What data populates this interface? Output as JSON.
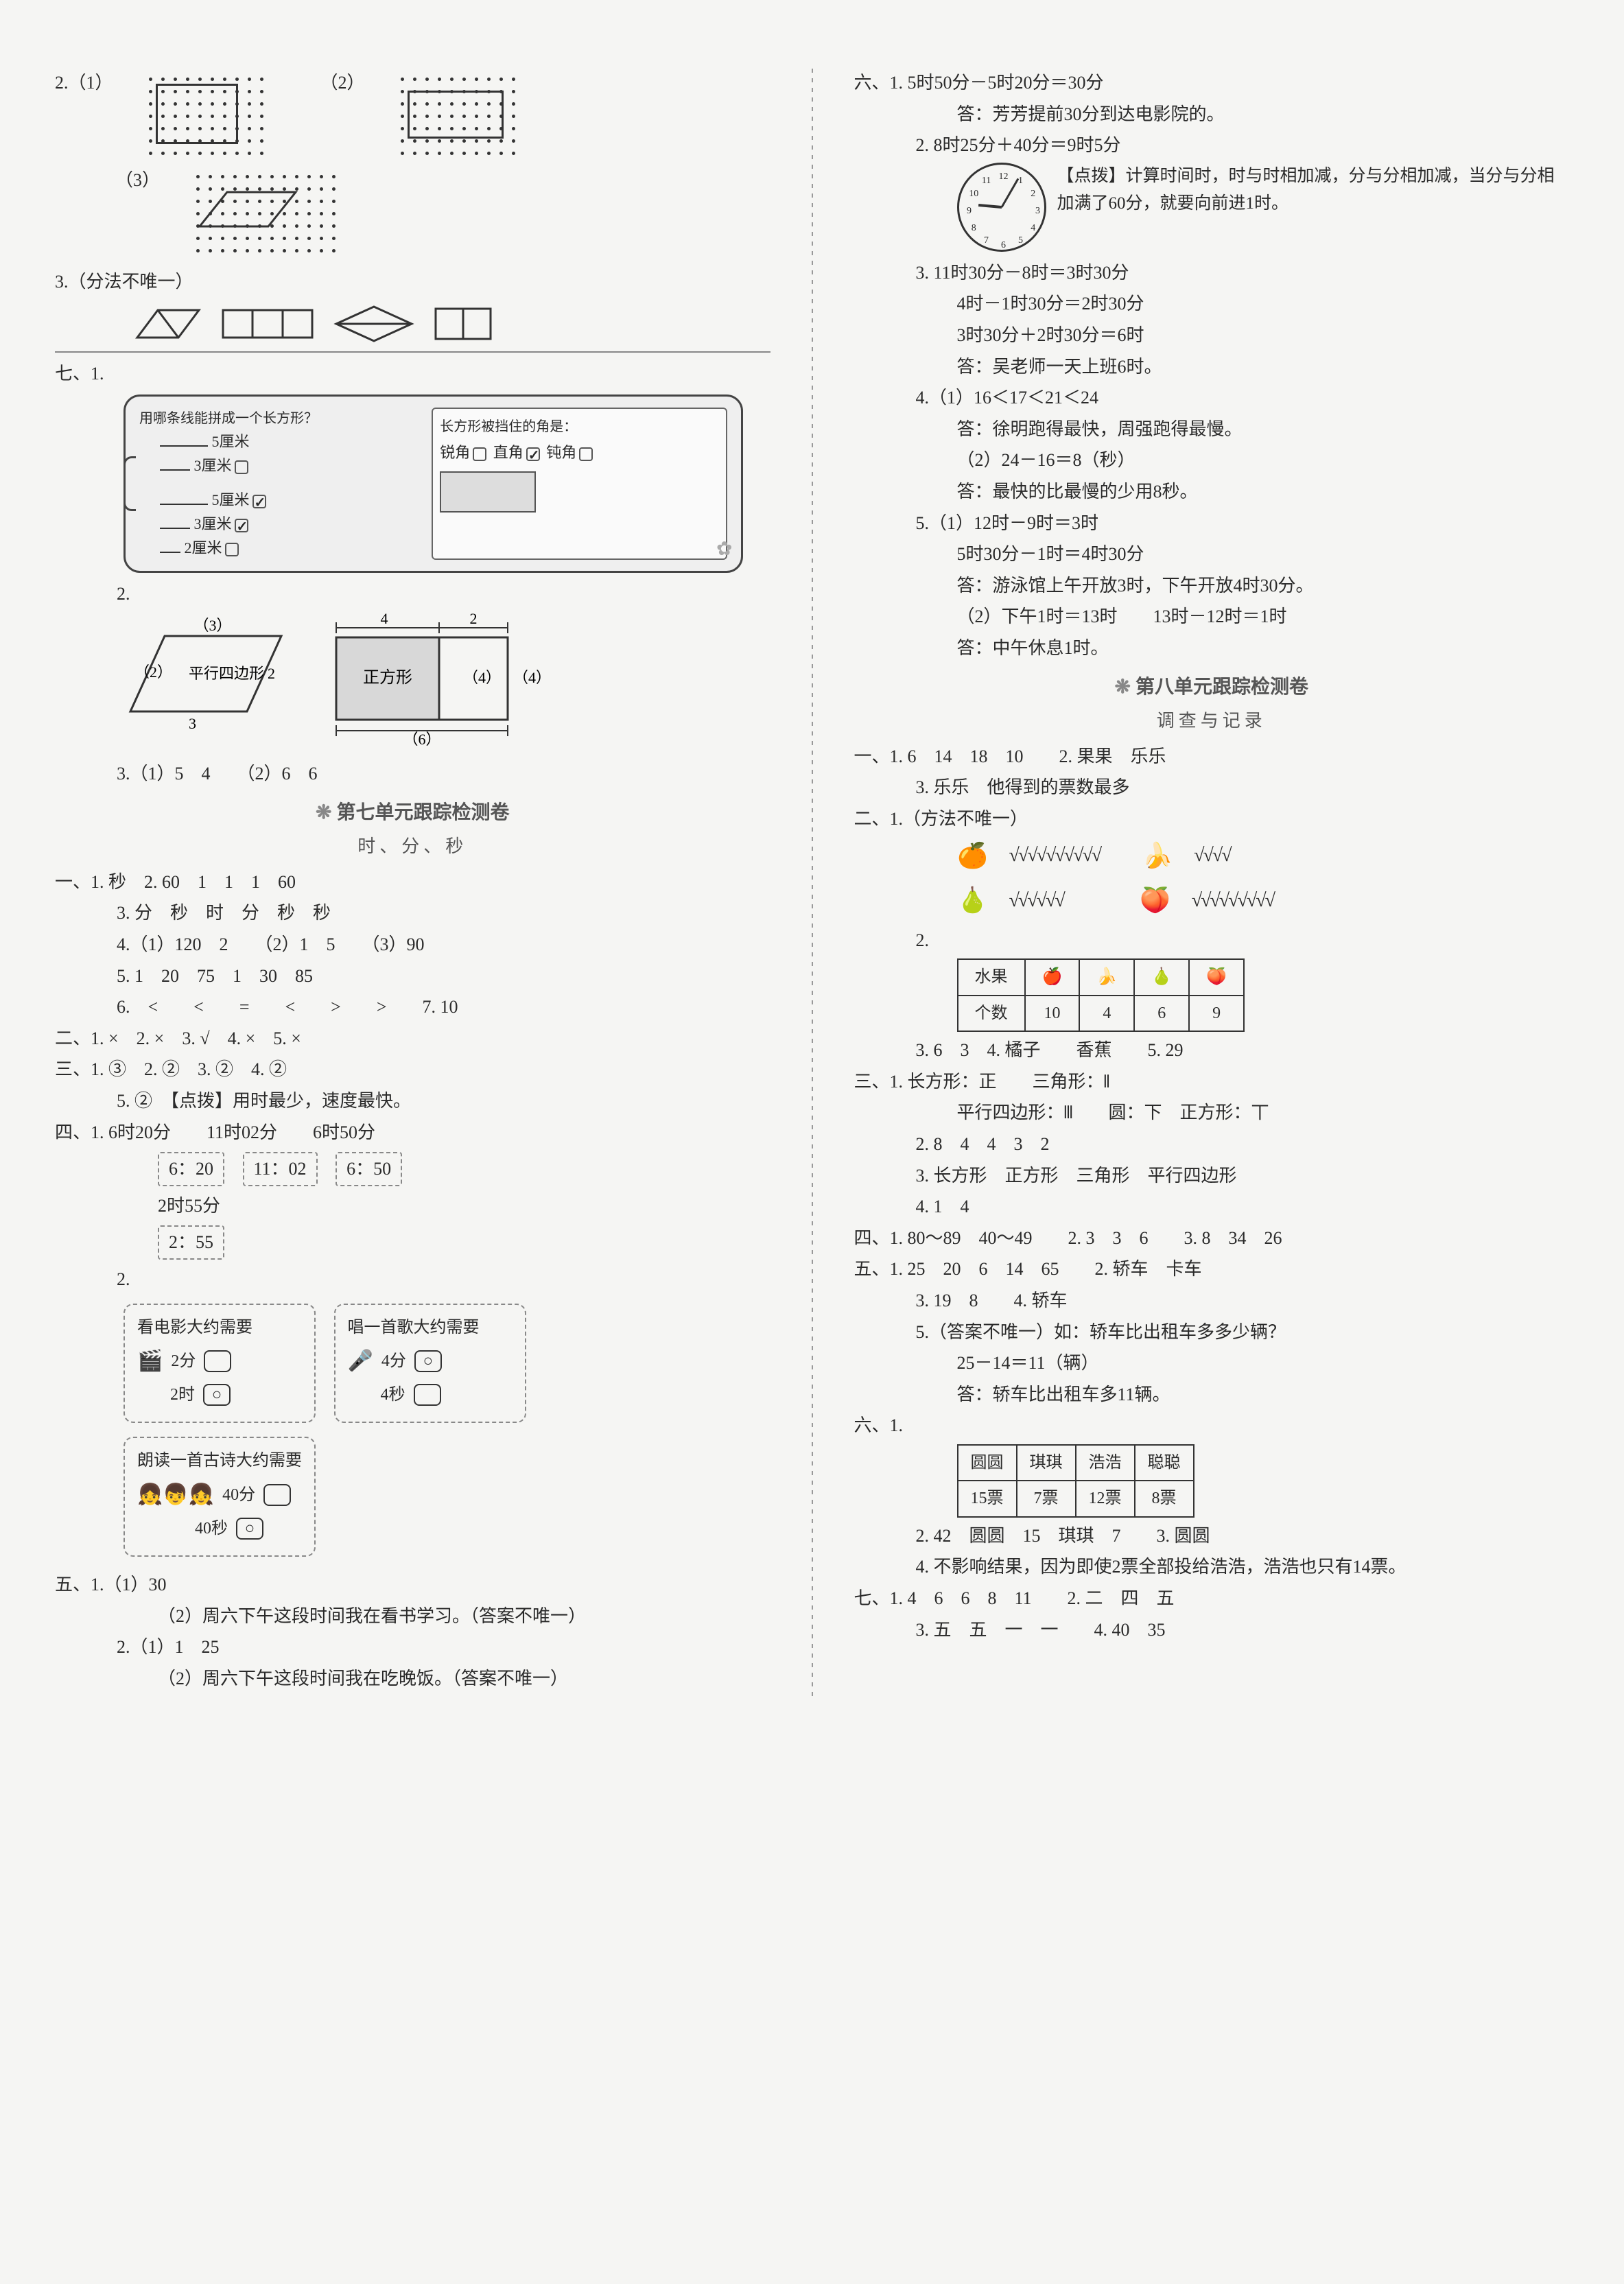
{
  "left": {
    "q2_label_1": "2.（1）",
    "q2_label_2": "（2）",
    "q2_label_3": "（3）",
    "q3": "3.（分法不唯一）",
    "seven1": "七、1.",
    "tablet": {
      "left_title": "用哪条线能拼成一个长方形？",
      "opt1": "5厘米",
      "opt2": "3厘米",
      "opt3": "5厘米",
      "opt4": "3厘米",
      "opt5": "2厘米",
      "right_title": "长方形被挡住的角是：",
      "angle1": "锐角",
      "angle2": "直角",
      "angle3": "钝角"
    },
    "seven2": "2.",
    "geo": {
      "para_top": "（3）",
      "para_left": "（2）",
      "para_label": "平行四边形",
      "para_right": "2",
      "para_bottom": "3",
      "sq_top_left": "4",
      "sq_top_right": "2",
      "sq_label": "正方形",
      "sq_mid": "（4）",
      "sq_right": "（4）",
      "sq_bottom": "（6）"
    },
    "seven3": "3.（1）5　4　　（2）6　6",
    "unit7_title": "第七单元跟踪检测卷",
    "unit7_sub": "时、分、秒",
    "u7_1_1": "一、1. 秒　2. 60　1　1　1　60",
    "u7_1_3": "3. 分　秒　时　分　秒　秒",
    "u7_1_4": "4.（1）120　2　　（2）1　5　　（3）90",
    "u7_1_5": "5. 1　20　75　1　30　85",
    "u7_1_6": "6.　<　　<　　=　　<　　>　　>　　7. 10",
    "u7_2": "二、1. ×　2. ×　3. √　4. ×　5. ×",
    "u7_3": "三、1. ③　2. ②　3. ②　4. ②",
    "u7_3_5": "5. ②　【点拨】用时最少，速度最快。",
    "u7_4_1": "四、1. 6时20分　　11时02分　　6时50分",
    "u7_4_1b": [
      "6：20",
      "11：02",
      "6：50"
    ],
    "u7_4_1c": "2时55分",
    "u7_4_1d": "2：55",
    "u7_4_2": "2.",
    "card1": {
      "title": "看电影大约需要",
      "opt1": "2分",
      "opt2": "2时"
    },
    "card2": {
      "title": "唱一首歌大约需要",
      "opt1": "4分",
      "opt2": "4秒"
    },
    "card3": {
      "title": "朗读一首古诗大约需要",
      "opt1": "40分",
      "opt2": "40秒"
    },
    "u7_5_1": "五、1.（1）30",
    "u7_5_1b": "（2）周六下午这段时间我在看书学习。（答案不唯一）",
    "u7_5_2": "2.（1）1　25",
    "u7_5_2b": "（2）周六下午这段时间我在吃晚饭。（答案不唯一）"
  },
  "right": {
    "u7_6_1": "六、1. 5时50分－5时20分＝30分",
    "u7_6_1a": "答：芳芳提前30分到达电影院的。",
    "u7_6_2": "2. 8时25分＋40分＝9时5分",
    "tip": "【点拨】计算时间时，时与时相加减，分与分相加减，当分与分相加满了60分，就要向前进1时。",
    "u7_6_3a": "3. 11时30分－8时＝3时30分",
    "u7_6_3b": "4时－1时30分＝2时30分",
    "u7_6_3c": "3时30分＋2时30分＝6时",
    "u7_6_3d": "答：吴老师一天上班6时。",
    "u7_6_4a": "4.（1）16＜17＜21＜24",
    "u7_6_4b": "答：徐明跑得最快，周强跑得最慢。",
    "u7_6_4c": "（2）24－16＝8（秒）",
    "u7_6_4d": "答：最快的比最慢的少用8秒。",
    "u7_6_5a": "5.（1）12时－9时＝3时",
    "u7_6_5b": "5时30分－1时＝4时30分",
    "u7_6_5c": "答：游泳馆上午开放3时，下午开放4时30分。",
    "u7_6_5d": "（2）下午1时＝13时　　13时－12时＝1时",
    "u7_6_5e": "答：中午休息1时。",
    "unit8_title": "第八单元跟踪检测卷",
    "unit8_sub": "调查与记录",
    "u8_1_1": "一、1. 6　14　18　10　　2. 果果　乐乐",
    "u8_1_3": "3. 乐乐　他得到的票数最多",
    "u8_2_1": "二、1.（方法不唯一）",
    "tally": {
      "orange": "√√√√√√√√√√",
      "banana": "√√√√",
      "pear": "√√√√√√",
      "peach": "√√√√√√√√√"
    },
    "u8_2_2": "2.",
    "fruit_table": {
      "header": "水果",
      "row2": "个数",
      "icons": [
        "🍎",
        "🍌",
        "🍐",
        "🍑"
      ],
      "vals": [
        "10",
        "4",
        "6",
        "9"
      ]
    },
    "u8_2_3": "3. 6　3　4. 橘子　　香蕉　　5. 29",
    "u8_3_1": "三、1. 长方形：正　　三角形：𝍪",
    "u8_3_1b": "平行四边形：𝍫　　圆：下　正方形：丅",
    "u8_3_2": "2. 8　4　4　3　2",
    "u8_3_3": "3. 长方形　正方形　三角形　平行四边形",
    "u8_3_4": "4. 1　4",
    "u8_4": "四、1. 80～89　40～49　　2. 3　3　6　　3. 8　34　26",
    "u8_5_1": "五、1. 25　20　6　14　65　　2. 轿车　卡车",
    "u8_5_3": "3. 19　8　　4. 轿车",
    "u8_5_5a": "5.（答案不唯一）如：轿车比出租车多多少辆？",
    "u8_5_5b": "25－14＝11（辆）",
    "u8_5_5c": "答：轿车比出租车多11辆。",
    "u8_6_1": "六、1.",
    "vote_table": {
      "names": [
        "圆圆",
        "琪琪",
        "浩浩",
        "聪聪"
      ],
      "votes": [
        "15票",
        "7票",
        "12票",
        "8票"
      ]
    },
    "u8_6_2": "2. 42　圆圆　15　琪琪　7　　3. 圆圆",
    "u8_6_4": "4. 不影响结果，因为即使2票全部投给浩浩，浩浩也只有14票。",
    "u8_7_1": "七、1. 4　6　6　8　11　　2. 二　四　五",
    "u8_7_3": "3. 五　五　一　一　　4. 40　35"
  }
}
